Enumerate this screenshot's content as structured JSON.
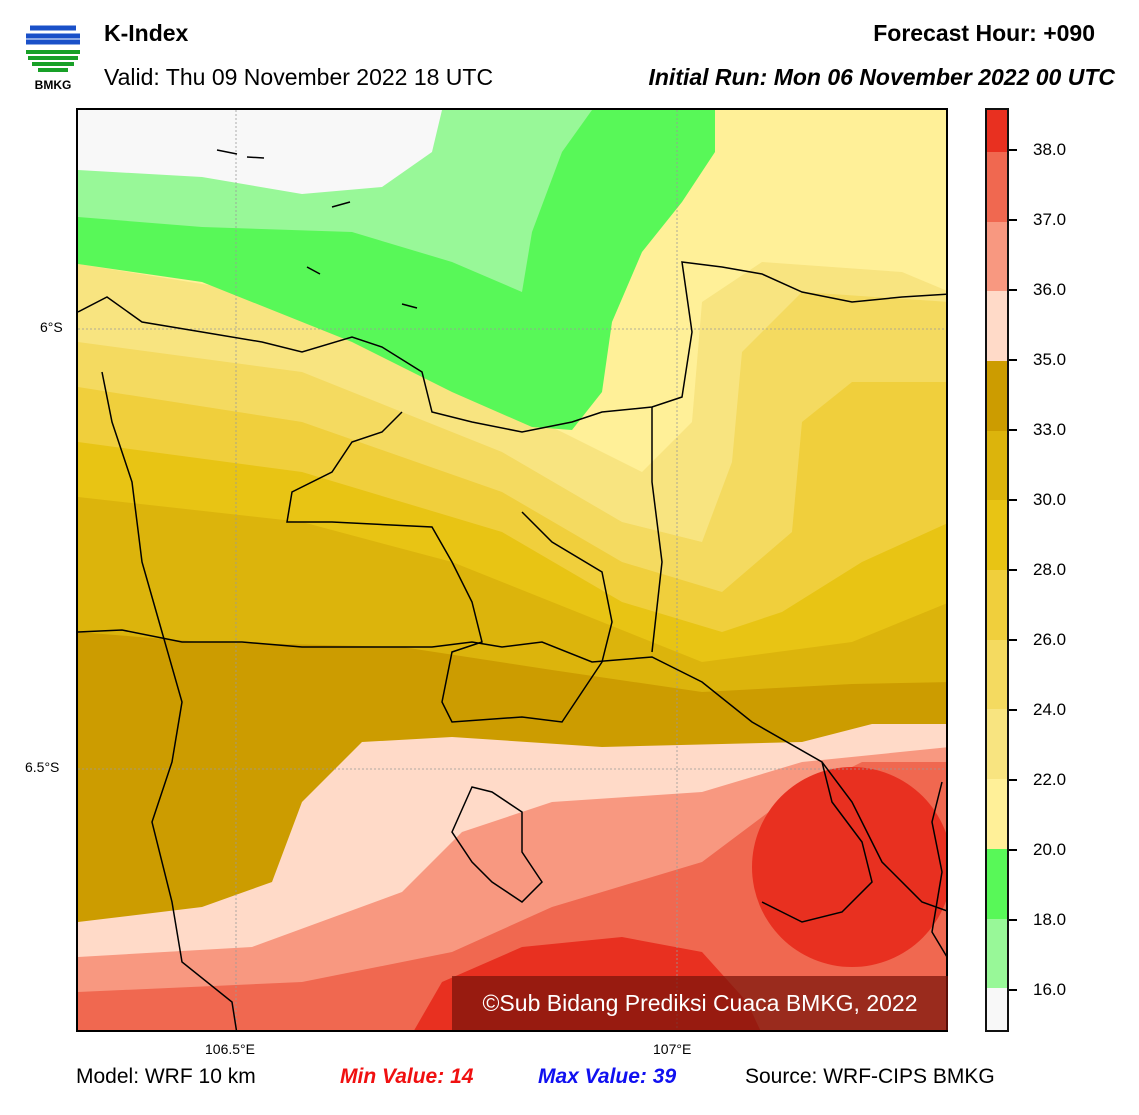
{
  "header": {
    "logo_text": "BMKG",
    "title": "K-Index",
    "valid": "Valid: Thu 09 November 2022 18 UTC",
    "forecast_hour": "Forecast Hour: +090",
    "initial_run": "Initial Run: Mon 06 November 2022 00 UTC"
  },
  "map": {
    "lat_labels": [
      "6°S",
      "6.5°S"
    ],
    "lon_labels": [
      "106.5°E",
      "107°E"
    ],
    "watermark": "©Sub Bidang Prediksi Cuaca BMKG, 2022"
  },
  "colorbar": {
    "ticks": [
      "38.0",
      "37.0",
      "36.0",
      "35.0",
      "33.0",
      "30.0",
      "28.0",
      "26.0",
      "24.0",
      "22.0",
      "20.0",
      "18.0",
      "16.0"
    ],
    "colors": [
      "#e83020",
      "#f06850",
      "#f89880",
      "#ffdac8",
      "#cc9c00",
      "#dcb40c",
      "#e8c414",
      "#f0cf3c",
      "#f4da60",
      "#f8e480",
      "#fff098",
      "#58f858",
      "#98f898",
      "#f8f8f8"
    ]
  },
  "footer": {
    "model": "Model: WRF 10 km",
    "min": "Min Value: 14",
    "max": "Max Value: 39",
    "source": "Source: WRF-CIPS BMKG"
  }
}
